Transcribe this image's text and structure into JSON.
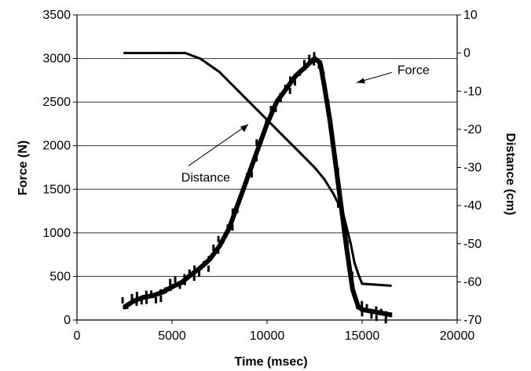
{
  "chart_data": {
    "type": "scatter",
    "x_axis": {
      "label": "Time (msec)",
      "range": [
        0,
        20000
      ],
      "ticks": [
        0,
        5000,
        10000,
        15000,
        20000
      ],
      "tick_labels": [
        "0",
        "5000",
        "10000",
        "15000",
        "20000"
      ]
    },
    "y_axis_left": {
      "label": "Force (N)",
      "range": [
        0,
        3500
      ],
      "ticks": [
        0,
        500,
        1000,
        1500,
        2000,
        2500,
        3000,
        3500
      ],
      "tick_labels": [
        "0",
        "500",
        "1000",
        "1500",
        "2000",
        "2500",
        "3000",
        "3500"
      ]
    },
    "y_axis_right": {
      "label": "Distance (cm)",
      "range": [
        -70,
        10
      ],
      "ticks": [
        -70,
        -60,
        -50,
        -40,
        -30,
        -20,
        -10,
        0,
        10
      ],
      "tick_labels": [
        "-70",
        "-60",
        "-50",
        "-40",
        "-30",
        "-20",
        "-10",
        "0",
        "10"
      ]
    },
    "grid": "horizontal",
    "legend": "none",
    "series": [
      {
        "axis": "left",
        "x": [
          2500,
          3000,
          3500,
          4000,
          4500,
          5000,
          5500,
          6000,
          6500,
          7000,
          7500,
          8000,
          8500,
          9000,
          9500,
          10000,
          10500,
          11000,
          11500,
          12000,
          12500,
          12800,
          13000,
          13300,
          13600,
          13900,
          14200,
          14500,
          14800,
          15000,
          15500,
          16000,
          16500
        ],
        "values": [
          150,
          220,
          260,
          280,
          320,
          380,
          430,
          520,
          600,
          700,
          850,
          1050,
          1350,
          1650,
          1950,
          2250,
          2500,
          2650,
          2800,
          2900,
          3000,
          2950,
          2700,
          2300,
          1800,
          1300,
          800,
          350,
          150,
          120,
          100,
          80,
          60
        ]
      },
      {
        "axis": "right",
        "x": [
          2500,
          3000,
          4000,
          5000,
          5700,
          6500,
          7500,
          8500,
          9500,
          10500,
          11500,
          12500,
          13000,
          13500,
          14000,
          14200,
          14400,
          14600,
          14800,
          15000,
          16500
        ],
        "values": [
          0,
          0,
          0,
          0,
          0,
          -1.5,
          -5,
          -10,
          -15,
          -20,
          -25,
          -30,
          -33,
          -37,
          -42,
          -46,
          -50,
          -55,
          -58,
          -60.5,
          -61
        ]
      }
    ],
    "annotations": [
      {
        "text": "Force",
        "x": 13300,
        "y": 2750
      },
      {
        "text": "Distance",
        "x": 7600,
        "y": 2650
      }
    ]
  }
}
